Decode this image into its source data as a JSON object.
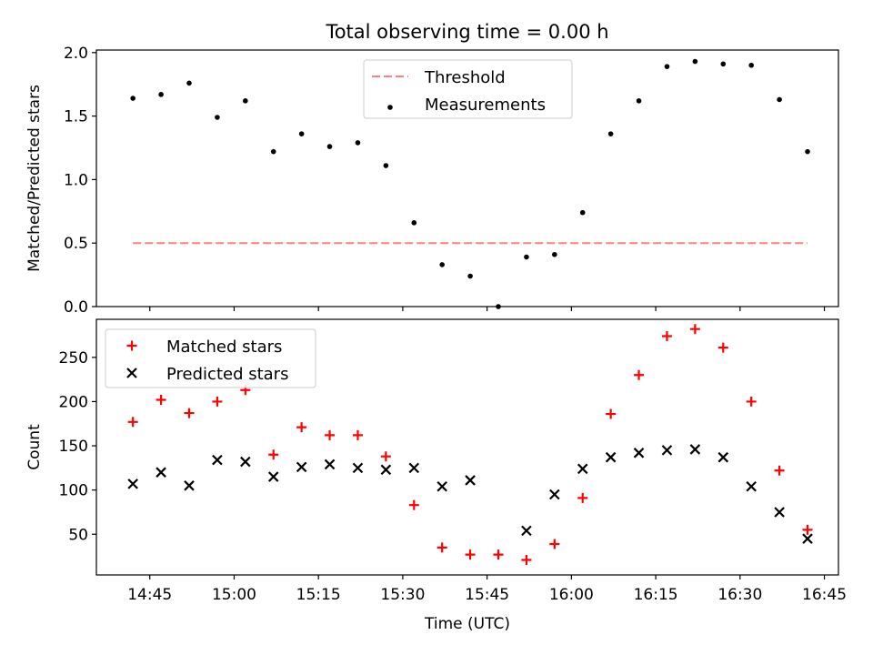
{
  "chart_data": {
    "type": "scatter",
    "title": "Total observing time = 0.00 h",
    "xlabel": "Time (UTC)",
    "x_unit": "minutes after 14:40 UTC",
    "xlim": [
      -4.5,
      127.5
    ],
    "x_ticks": [
      {
        "value": 5,
        "label": "14:45"
      },
      {
        "value": 20,
        "label": "15:00"
      },
      {
        "value": 35,
        "label": "15:15"
      },
      {
        "value": 50,
        "label": "15:30"
      },
      {
        "value": 65,
        "label": "15:45"
      },
      {
        "value": 80,
        "label": "16:00"
      },
      {
        "value": 95,
        "label": "16:15"
      },
      {
        "value": 110,
        "label": "16:30"
      },
      {
        "value": 125,
        "label": "16:45"
      }
    ],
    "panels": [
      {
        "name": "ratio",
        "ylabel": "Matched/Predicted stars",
        "ylim": [
          0,
          2.02
        ],
        "y_ticks": [
          {
            "value": 0,
            "label": "0.0"
          },
          {
            "value": 0.5,
            "label": "0.5"
          },
          {
            "value": 1.0,
            "label": "1.0"
          },
          {
            "value": 1.5,
            "label": "1.5"
          },
          {
            "value": 2.0,
            "label": "2.0"
          }
        ],
        "legend_position": "upper-center",
        "series": [
          {
            "name": "Threshold",
            "kind": "dashed-line",
            "color": "#ff7f7f",
            "x": [
              2,
              122
            ],
            "y": [
              0.5,
              0.5
            ]
          },
          {
            "name": "Measurements",
            "kind": "dot",
            "color": "#000000",
            "x": [
              2,
              7,
              12,
              17,
              22,
              27,
              32,
              37,
              42,
              47,
              52,
              57,
              62,
              67,
              72,
              77,
              82,
              87,
              92,
              97,
              102,
              107,
              112,
              117,
              122
            ],
            "y": [
              1.64,
              1.67,
              1.76,
              1.49,
              1.62,
              1.22,
              1.36,
              1.26,
              1.29,
              1.11,
              0.66,
              0.33,
              0.24,
              0.0,
              0.39,
              0.41,
              0.74,
              1.36,
              1.62,
              1.89,
              1.93,
              1.91,
              1.9,
              1.63,
              1.22
            ]
          }
        ]
      },
      {
        "name": "counts",
        "ylabel": "Count",
        "ylim": [
          4,
          293
        ],
        "y_ticks": [
          {
            "value": 50,
            "label": "50"
          },
          {
            "value": 100,
            "label": "100"
          },
          {
            "value": 150,
            "label": "150"
          },
          {
            "value": 200,
            "label": "200"
          },
          {
            "value": 250,
            "label": "250"
          }
        ],
        "legend_position": "upper-left",
        "series": [
          {
            "name": "Matched stars",
            "kind": "plus",
            "color": "#ff0000",
            "x": [
              2,
              7,
              12,
              17,
              22,
              27,
              32,
              37,
              42,
              47,
              52,
              57,
              62,
              67,
              72,
              77,
              82,
              87,
              92,
              97,
              102,
              107,
              112,
              117,
              122
            ],
            "y": [
              177,
              202,
              187,
              200,
              213,
              140,
              171,
              162,
              162,
              138,
              83,
              35,
              27,
              27,
              21,
              39,
              91,
              186,
              230,
              274,
              282,
              261,
              200,
              122,
              55
            ]
          },
          {
            "name": "Predicted stars",
            "kind": "x",
            "color": "#000000",
            "x": [
              2,
              7,
              12,
              17,
              22,
              27,
              32,
              37,
              42,
              47,
              52,
              57,
              62,
              72,
              77,
              82,
              87,
              92,
              97,
              102,
              107,
              112,
              117,
              122
            ],
            "y": [
              107,
              120,
              105,
              134,
              132,
              115,
              126,
              129,
              125,
              123,
              125,
              104,
              111,
              54,
              95,
              124,
              137,
              142,
              145,
              146,
              137,
              104,
              75,
              45
            ]
          }
        ]
      }
    ]
  }
}
